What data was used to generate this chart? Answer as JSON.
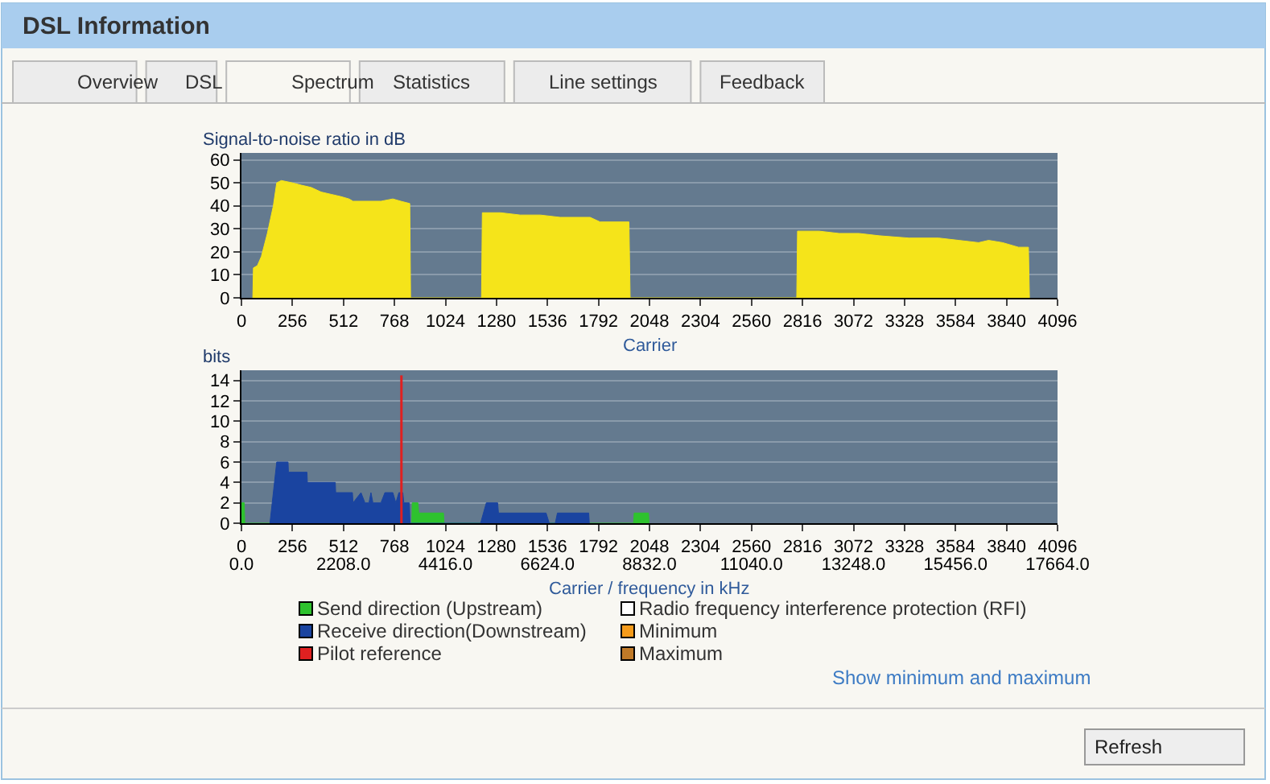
{
  "chart_data": [
    {
      "type": "other",
      "title": "DSL Information",
      "annotations": [
        "Overview",
        "DSL",
        "Spectrum",
        "Statistics",
        "Line settings",
        "Feedback",
        "Show minimum and maximum",
        "Refresh"
      ]
    },
    {
      "type": "area",
      "ylabel": "Signal-to-noise ratio in dB",
      "xlabel": "Carrier",
      "xlim": [
        0,
        4096
      ],
      "xticks": [
        0,
        256,
        512,
        768,
        1024,
        1280,
        1536,
        1792,
        2048,
        2304,
        2560,
        2816,
        3072,
        3328,
        3584,
        3840,
        4096
      ],
      "ylim": [
        0,
        63
      ],
      "yticks": [
        0,
        10,
        20,
        30,
        40,
        50,
        60
      ],
      "grid": "y",
      "legend": false,
      "series": [
        {
          "color": "#f5e41a",
          "x": [
            57,
            60,
            80,
            100,
            130,
            160,
            177,
            200,
            256,
            300,
            350,
            400,
            450,
            500,
            540,
            560,
            700,
            760,
            800,
            845,
            849,
            1205,
            1209,
            1300,
            1400,
            1500,
            1600,
            1750,
            1800,
            1945,
            1951,
            2787,
            2791,
            2900,
            3000,
            3100,
            3200,
            3350,
            3500,
            3600,
            3700,
            3750,
            3820,
            3900,
            3950,
            3955
          ],
          "values": [
            0,
            13,
            14,
            18,
            28,
            40,
            50,
            51,
            50,
            49,
            48,
            46,
            45,
            44,
            43,
            42,
            42,
            43,
            42,
            41,
            0,
            0,
            37,
            37,
            36,
            36,
            35,
            35,
            33,
            33,
            0,
            0,
            29,
            29,
            28,
            28,
            27,
            26,
            26,
            25,
            24,
            25,
            24,
            22,
            22,
            0
          ]
        }
      ]
    },
    {
      "type": "area",
      "ylabel": "bits",
      "xlabel": "Carrier / frequency in kHz",
      "xlim": [
        0,
        4096
      ],
      "xticks": [
        0,
        256,
        512,
        768,
        1024,
        1280,
        1536,
        1792,
        2048,
        2304,
        2560,
        2816,
        3072,
        3328,
        3584,
        3840,
        4096
      ],
      "x2lim": [
        0,
        17664
      ],
      "x2ticks": [
        {
          "value": 0,
          "label": "0.0"
        },
        {
          "value": 2208,
          "label": "2208.0"
        },
        {
          "value": 4416,
          "label": "4416.0"
        },
        {
          "value": 6624,
          "label": "6624.0"
        },
        {
          "value": 8832,
          "label": "8832.0"
        },
        {
          "value": 11040,
          "label": "11040.0"
        },
        {
          "value": 13248,
          "label": "13248.0"
        },
        {
          "value": 15456,
          "label": "15456.0"
        },
        {
          "value": 17664,
          "label": "17664.0"
        }
      ],
      "ylim": [
        0,
        15
      ],
      "yticks": [
        0,
        2,
        4,
        6,
        8,
        10,
        12,
        14
      ],
      "grid": "y",
      "legend": "bottom",
      "series": [
        {
          "name": "Send direction (Upstream)",
          "color": "#2ec22e",
          "x": [
            0,
            14,
            17,
            855,
            857,
            886,
            890,
            1014,
            1017,
            1968,
            1971,
            2043,
            2046
          ],
          "values": [
            2,
            2,
            0,
            0,
            2,
            2,
            1,
            1,
            0,
            0,
            1,
            1,
            0
          ]
        },
        {
          "name": "Radio frequency interference protection (RFI)",
          "color": "#ffffff"
        },
        {
          "name": "Receive direction(Downstream)",
          "color": "#1a44a0",
          "x": [
            143,
            177,
            234,
            236,
            329,
            331,
            471,
            473,
            557,
            560,
            600,
            620,
            640,
            650,
            660,
            700,
            720,
            760,
            775,
            790,
            810,
            815,
            843,
            846,
            1200,
            1229,
            1286,
            1290,
            1529,
            1545,
            1575,
            1586,
            1743,
            1746
          ],
          "values": [
            0,
            6,
            6,
            5,
            5,
            4,
            4,
            3,
            3,
            2,
            3,
            2,
            2,
            3,
            2,
            2,
            3,
            3,
            2,
            3,
            3,
            2,
            2,
            0,
            0,
            2,
            2,
            1,
            1,
            0,
            0,
            1,
            1,
            0
          ]
        },
        {
          "name": "Minimum",
          "color": "#f59b1a"
        },
        {
          "name": "Pilot reference",
          "type": "line",
          "color": "#e02020",
          "x": [
            803,
            803
          ],
          "values": [
            0,
            14.5
          ]
        },
        {
          "name": "Maximum",
          "color": "#c07a28"
        }
      ]
    }
  ]
}
